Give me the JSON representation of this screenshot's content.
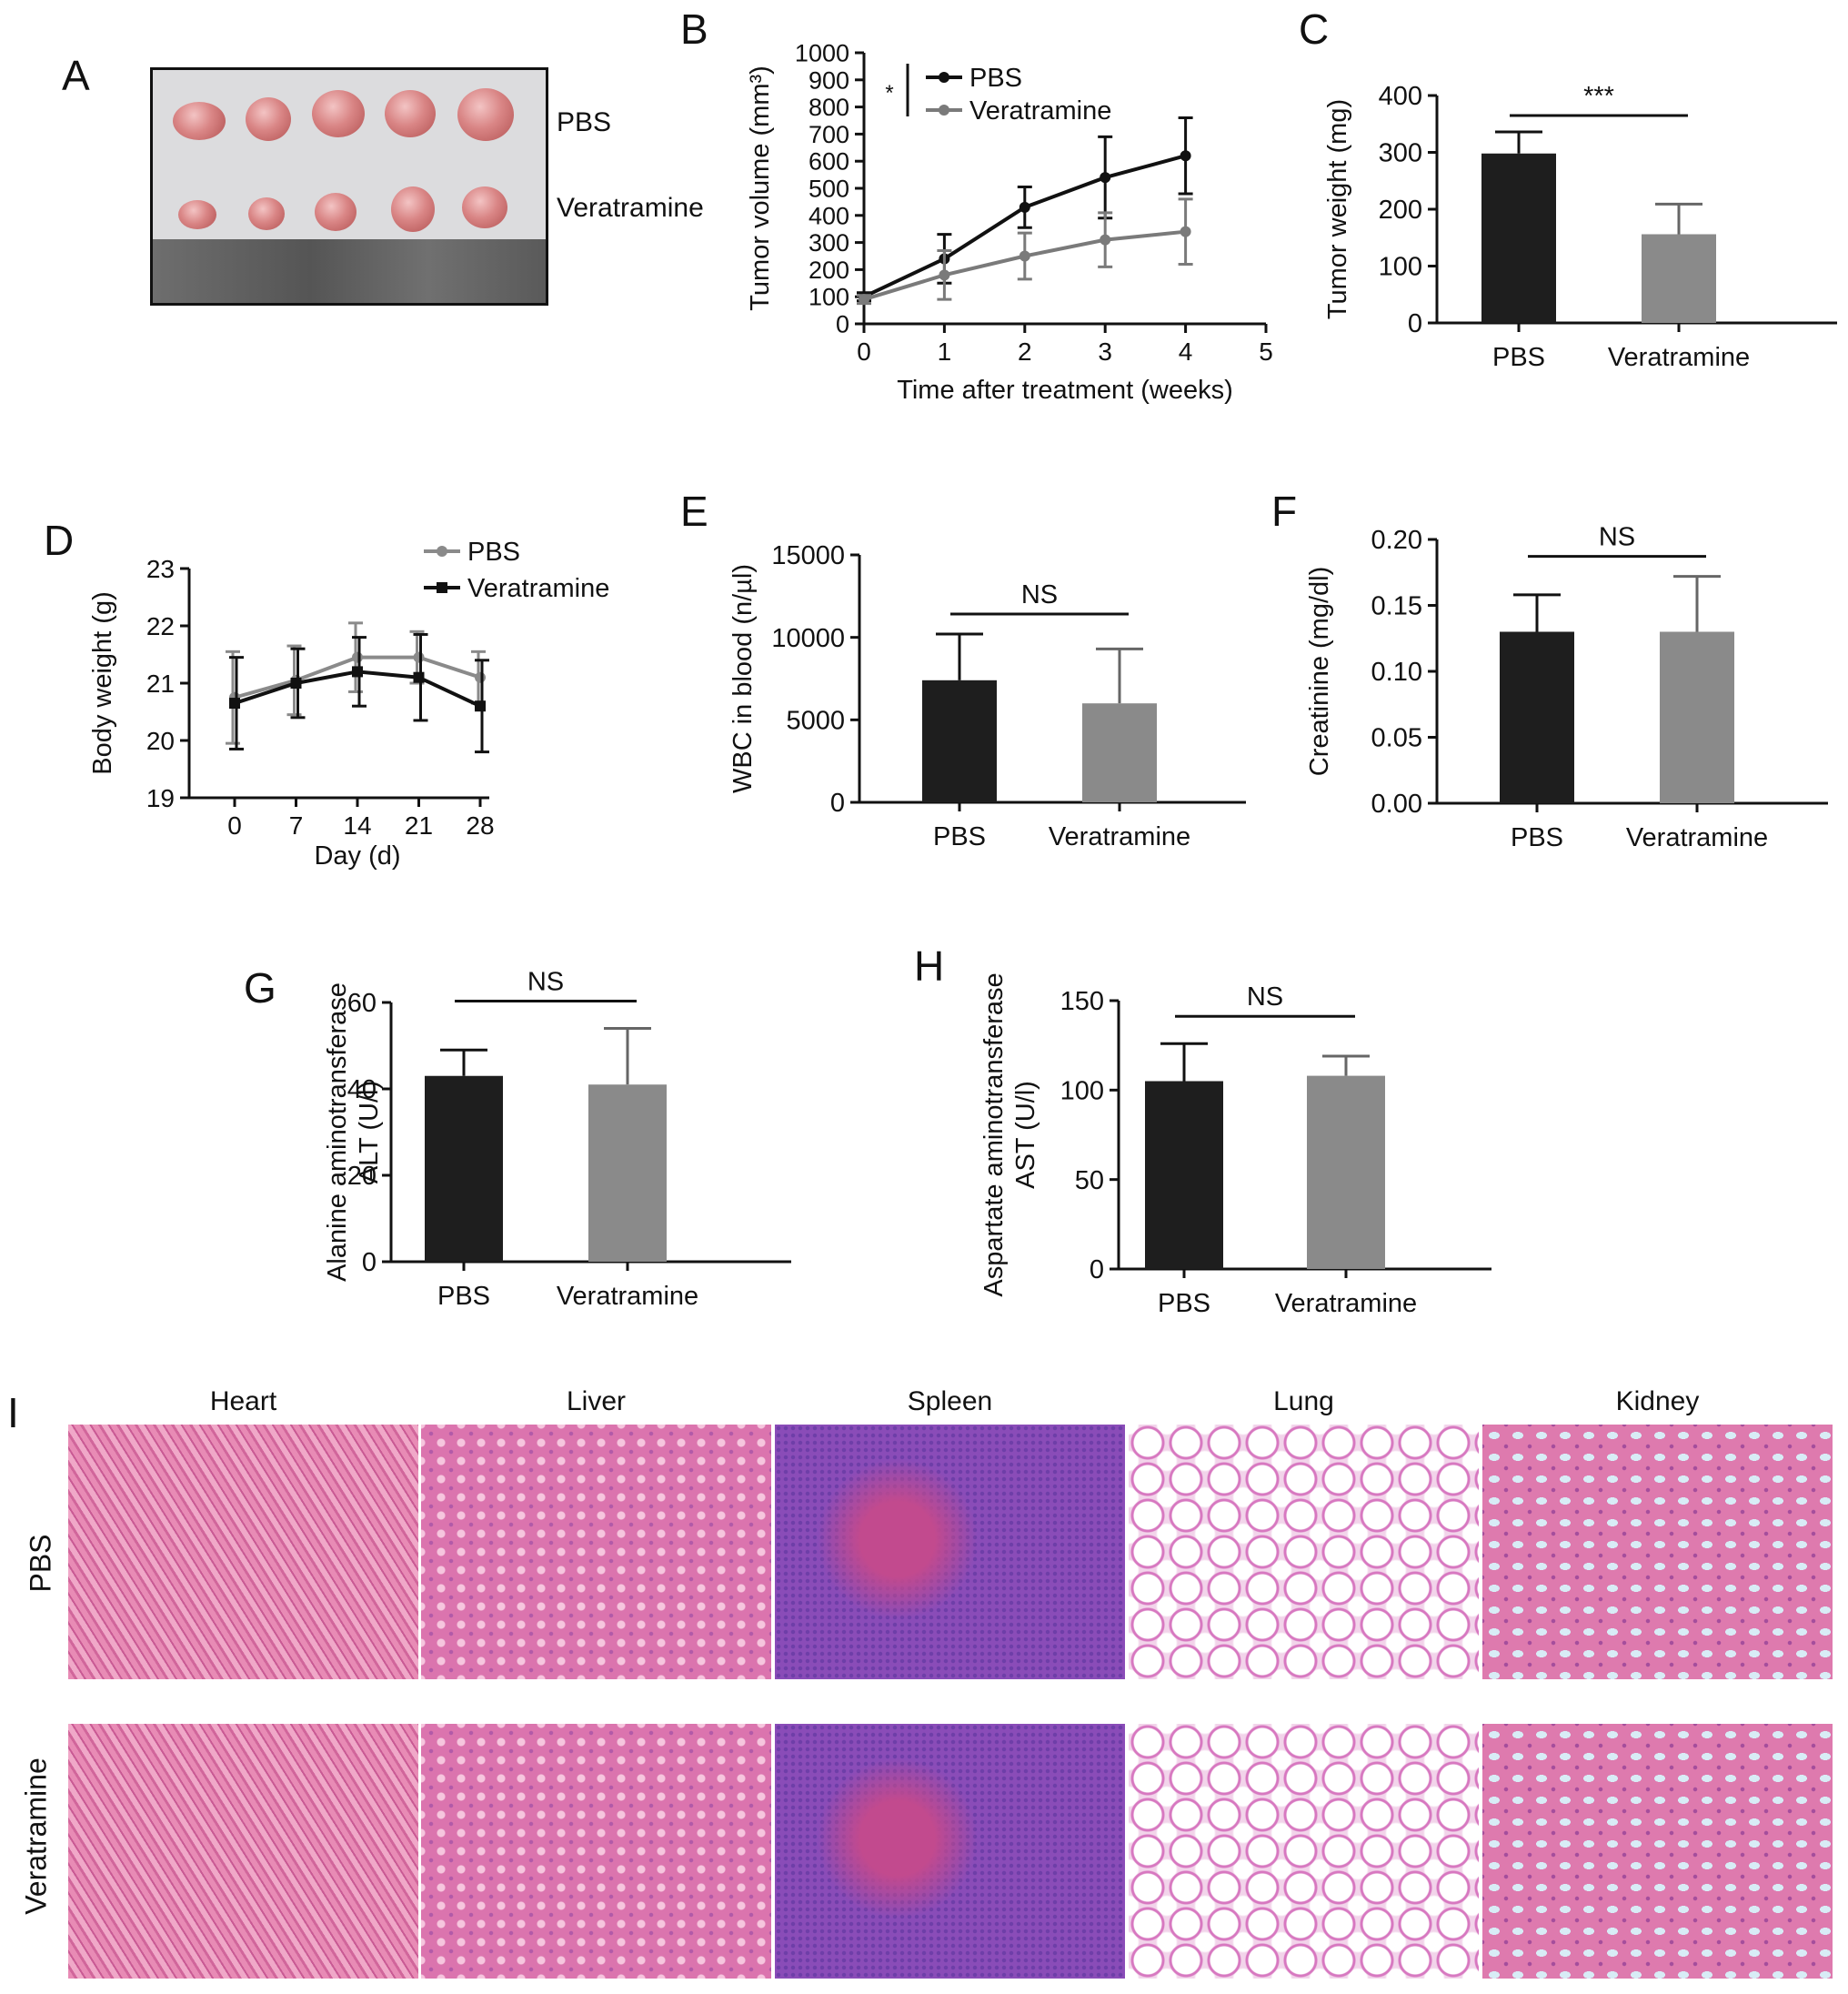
{
  "panels": {
    "A": {
      "label": "A",
      "groups": [
        "PBS",
        "Veratramine"
      ]
    },
    "I": {
      "label": "I",
      "organs": [
        "Heart",
        "Liver",
        "Spleen",
        "Lung",
        "Kidney"
      ],
      "rows": [
        "PBS",
        "Veratramine"
      ]
    }
  },
  "chart_data": [
    {
      "id": "B",
      "label": "B",
      "type": "line",
      "x": [
        0,
        1,
        2,
        3,
        4
      ],
      "series": [
        {
          "name": "PBS",
          "values": [
            100,
            240,
            430,
            540,
            620
          ],
          "errors": [
            15,
            90,
            75,
            150,
            140
          ],
          "color": "#111111"
        },
        {
          "name": "Veratramine",
          "values": [
            90,
            180,
            250,
            310,
            340
          ],
          "errors": [
            15,
            90,
            85,
            100,
            120
          ],
          "color": "#7a7a7a"
        }
      ],
      "xlabel": "Time after treatment (weeks)",
      "ylabel": "Tumor volume (mm³)",
      "xlim": [
        0,
        5
      ],
      "ylim": [
        0,
        1000
      ],
      "xticks": [
        0,
        1,
        2,
        3,
        4,
        5
      ],
      "yticks": [
        0,
        100,
        200,
        300,
        400,
        500,
        600,
        700,
        800,
        900,
        1000
      ],
      "significance": "*",
      "legend": "top-left"
    },
    {
      "id": "C",
      "label": "C",
      "type": "bar",
      "categories": [
        "PBS",
        "Veratramine"
      ],
      "values": [
        298,
        156
      ],
      "errors": [
        38,
        53
      ],
      "colors": [
        "#1e1e1e",
        "#8a8a8a"
      ],
      "ylabel": "Tumor weight (mg)",
      "ylim": [
        0,
        400
      ],
      "yticks": [
        0,
        100,
        200,
        300,
        400
      ],
      "significance": "***"
    },
    {
      "id": "D",
      "label": "D",
      "type": "line",
      "x": [
        0,
        7,
        14,
        21,
        28
      ],
      "series": [
        {
          "name": "PBS",
          "values": [
            20.75,
            21.05,
            21.45,
            21.45,
            21.1
          ],
          "errors": [
            0.8,
            0.6,
            0.6,
            0.45,
            0.45
          ],
          "color": "#8a8a8a",
          "marker": "circle"
        },
        {
          "name": "Veratramine",
          "values": [
            20.65,
            21.0,
            21.2,
            21.1,
            20.6
          ],
          "errors": [
            0.8,
            0.6,
            0.6,
            0.75,
            0.8
          ],
          "color": "#111111",
          "marker": "square"
        }
      ],
      "xlabel": "Day (d)",
      "ylabel": "Body weight (g)",
      "ylim": [
        19,
        23
      ],
      "xticks": [
        0,
        7,
        14,
        21,
        28
      ],
      "yticks": [
        19,
        20,
        21,
        22,
        23
      ],
      "legend": "top-right"
    },
    {
      "id": "E",
      "label": "E",
      "type": "bar",
      "categories": [
        "PBS",
        "Veratramine"
      ],
      "values": [
        7400,
        6000
      ],
      "errors": [
        2800,
        3300
      ],
      "colors": [
        "#1e1e1e",
        "#8a8a8a"
      ],
      "ylabel": "WBC in blood (n/µl)",
      "ylim": [
        0,
        15000
      ],
      "yticks": [
        0,
        5000,
        10000,
        15000
      ],
      "significance": "NS"
    },
    {
      "id": "F",
      "label": "F",
      "type": "bar",
      "categories": [
        "PBS",
        "Veratramine"
      ],
      "values": [
        0.13,
        0.13
      ],
      "errors": [
        0.028,
        0.042
      ],
      "colors": [
        "#1e1e1e",
        "#8a8a8a"
      ],
      "ylabel": "Creatinine (mg/dl)",
      "ylim": [
        0,
        0.2
      ],
      "yticks": [
        "0.00",
        "0.05",
        "0.10",
        "0.15",
        "0.20"
      ],
      "significance": "NS"
    },
    {
      "id": "G",
      "label": "G",
      "type": "bar",
      "categories": [
        "PBS",
        "Veratramine"
      ],
      "values": [
        43,
        41
      ],
      "errors": [
        6,
        13
      ],
      "colors": [
        "#1e1e1e",
        "#8a8a8a"
      ],
      "ylabel": [
        "Alanine aminotransferase",
        "ALT (U/l)"
      ],
      "ylim": [
        0,
        60
      ],
      "yticks": [
        0,
        20,
        40,
        60
      ],
      "significance": "NS"
    },
    {
      "id": "H",
      "label": "H",
      "type": "bar",
      "categories": [
        "PBS",
        "Veratramine"
      ],
      "values": [
        105,
        108
      ],
      "errors": [
        21,
        11
      ],
      "colors": [
        "#1e1e1e",
        "#8a8a8a"
      ],
      "ylabel": [
        "Aspartate aminotransferase",
        "AST (U/l)"
      ],
      "ylim": [
        0,
        150
      ],
      "yticks": [
        0,
        50,
        100,
        150
      ],
      "significance": "NS"
    }
  ]
}
